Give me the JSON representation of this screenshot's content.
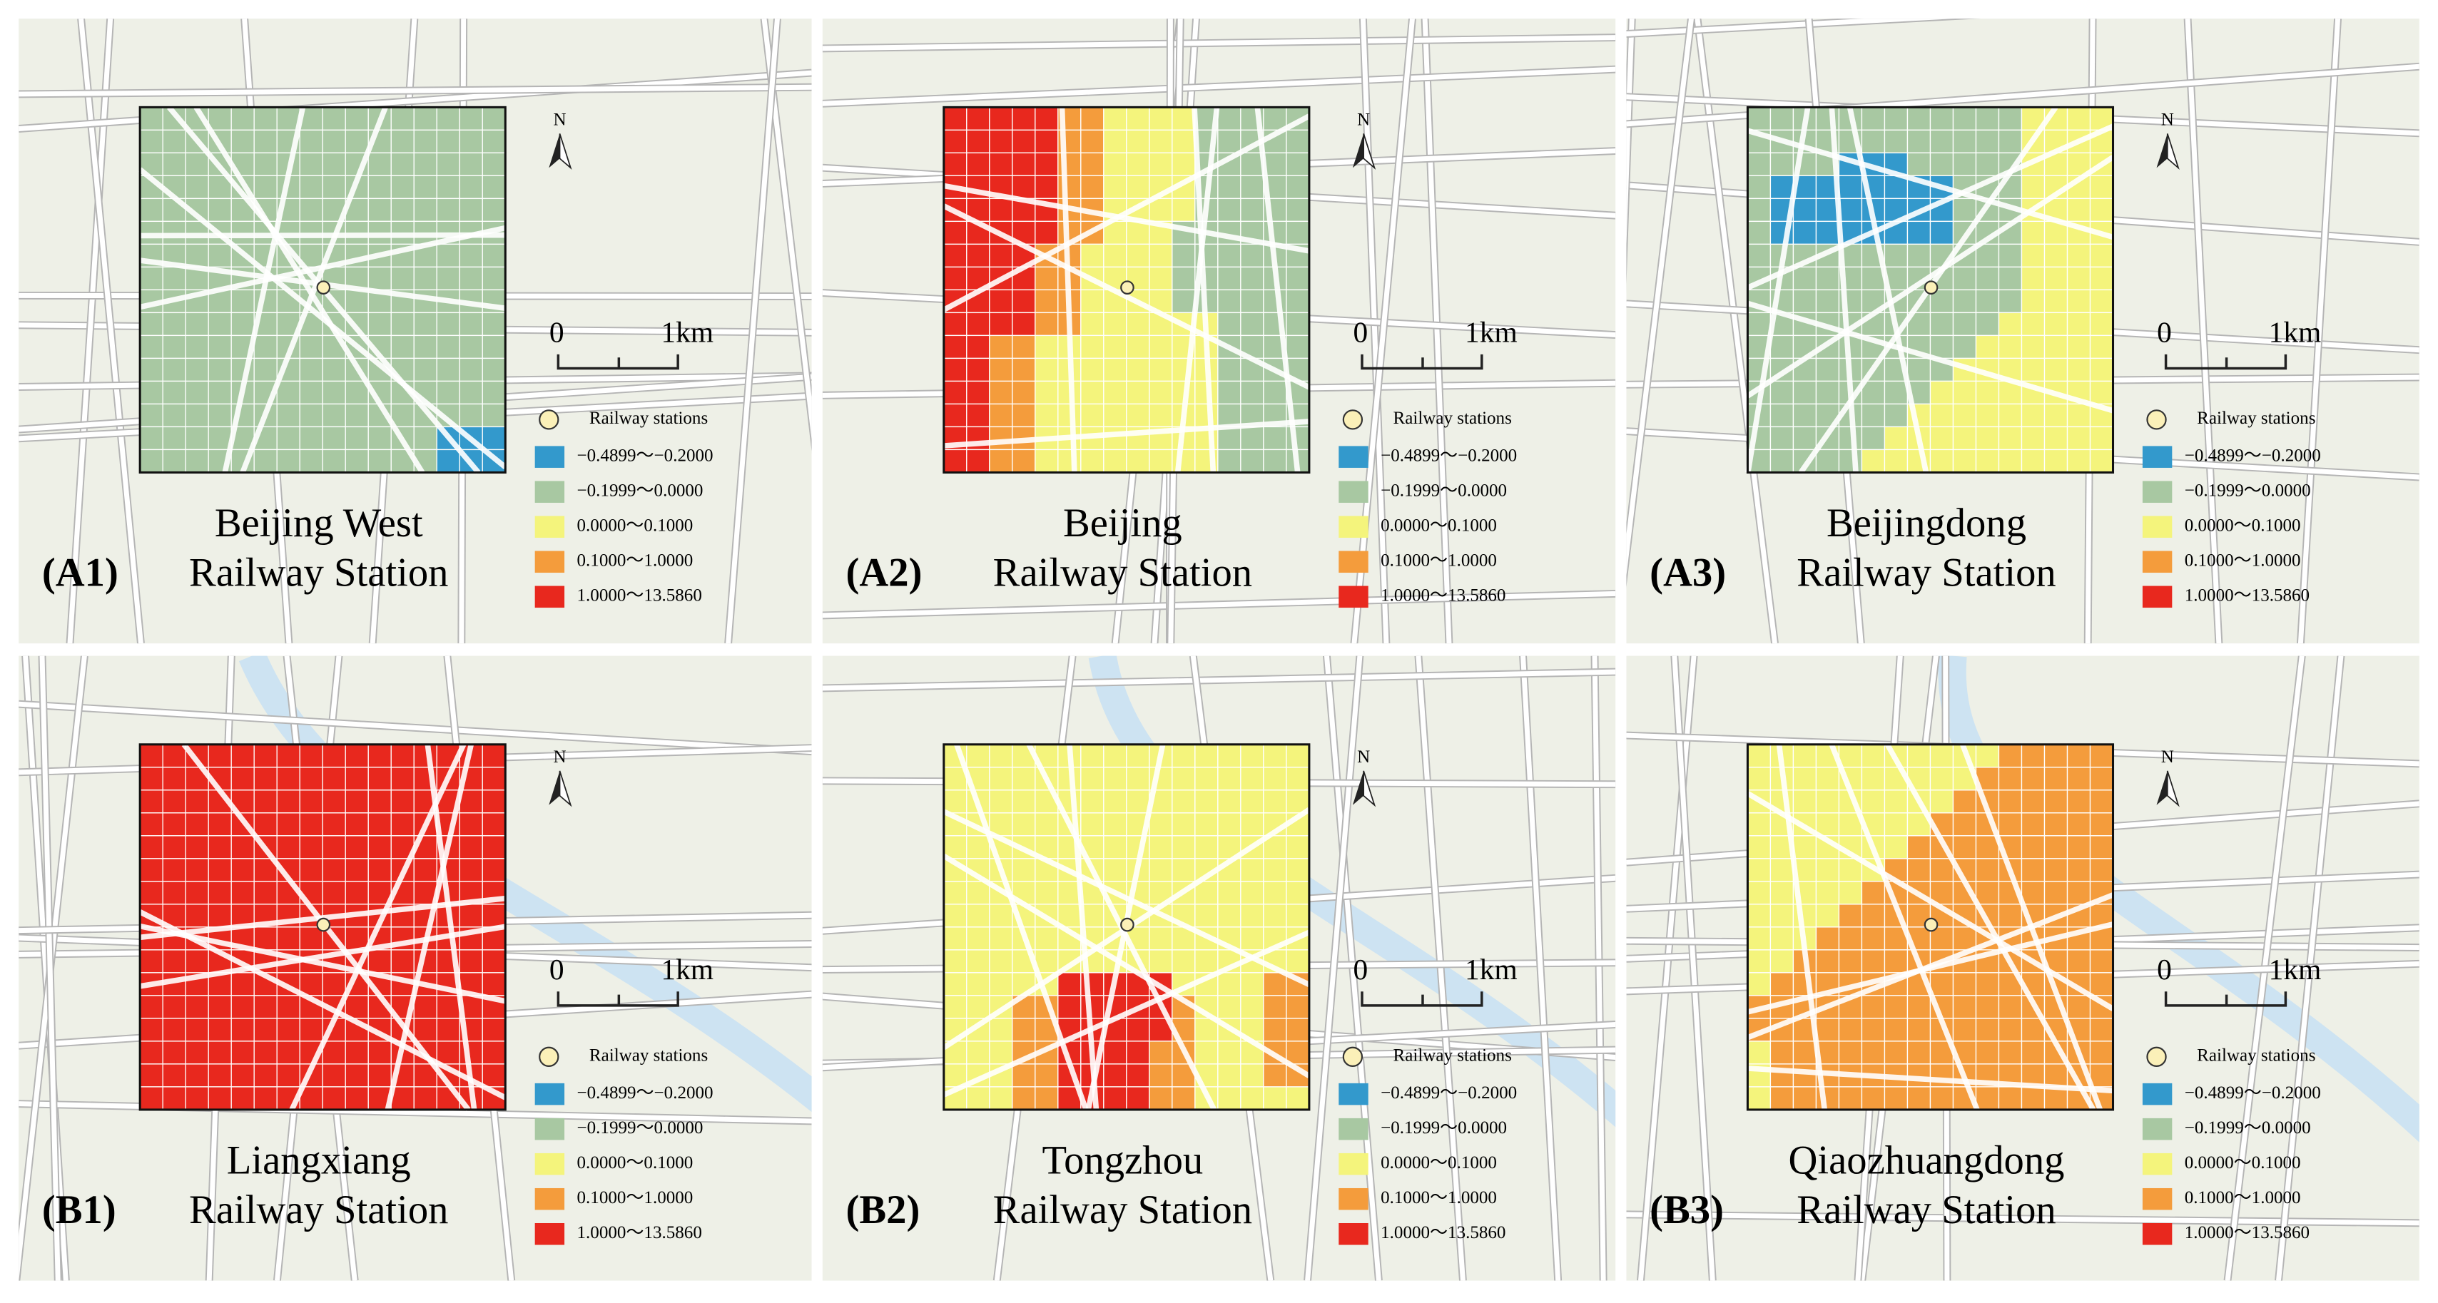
{
  "north": "N",
  "scale_bar": {
    "zero": "0",
    "unit": "1km"
  },
  "legend": {
    "station": "Railway stations",
    "classes": [
      {
        "label": "−0.4899～−0.2000",
        "color": "#3399cc"
      },
      {
        "label": "−0.1999～0.0000",
        "color": "#a8c8a2"
      },
      {
        "label": "0.0000～0.1000",
        "color": "#f4f47c"
      },
      {
        "label": "0.1000～1.0000",
        "color": "#f49c3c"
      },
      {
        "label": "1.0000～13.5860",
        "color": "#e8281e"
      }
    ]
  },
  "panels": [
    {
      "label": "(A1)",
      "name": [
        "Beijing West",
        "Railway Station"
      ]
    },
    {
      "label": "(A2)",
      "name": [
        "Beijing",
        "Railway Station"
      ]
    },
    {
      "label": "(A3)",
      "name": [
        "Beijingdong",
        "Railway Station"
      ]
    },
    {
      "label": "(B1)",
      "name": [
        "Liangxiang",
        "Railway Station"
      ]
    },
    {
      "label": "(B2)",
      "name": [
        "Tongzhou",
        "Railway Station"
      ]
    },
    {
      "label": "(B3)",
      "name": [
        "Qiaozhuangdong",
        "Railway Station"
      ]
    }
  ]
}
